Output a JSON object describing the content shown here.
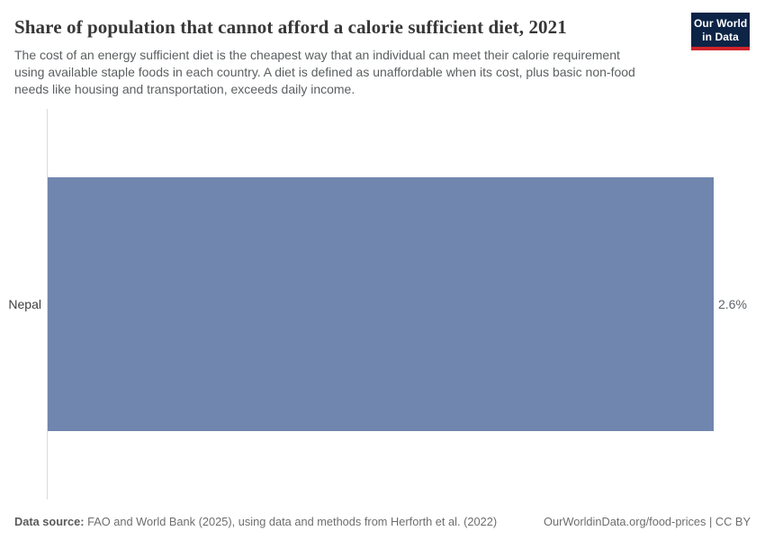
{
  "header": {
    "title": "Share of population that cannot afford a calorie sufficient diet, 2021",
    "subtitle": "The cost of an energy sufficient diet is the cheapest way that an individual can meet their calorie requirement using available staple foods in each country. A diet is defined as unaffordable when its cost, plus basic non-food needs like housing and transportation, exceeds daily income.",
    "logo": {
      "line1": "Our World",
      "line2": "in Data"
    }
  },
  "chart_data": {
    "type": "bar",
    "orientation": "horizontal",
    "title": "Share of population that cannot afford a calorie sufficient diet, 2021",
    "year": "2021",
    "categories": [
      "Nepal"
    ],
    "values": [
      2.6
    ],
    "value_labels": [
      "2.6%"
    ],
    "unit": "%",
    "xlim": [
      0,
      2.6
    ],
    "grid": false,
    "legend": false,
    "bar_color": "#7186ae"
  },
  "footer": {
    "data_source_label": "Data source:",
    "data_source_text": "FAO and World Bank (2025), using data and methods from Herforth et al. (2022)",
    "link_text": "OurWorldinData.org/food-prices | CC BY"
  },
  "colors": {
    "bar": "#7186ae",
    "logo_background": "#0d2446",
    "logo_stripe": "#d0232a",
    "axis_line": "#dbdbdb",
    "title_text": "#373737",
    "subtitle_text": "#5b5f61"
  }
}
